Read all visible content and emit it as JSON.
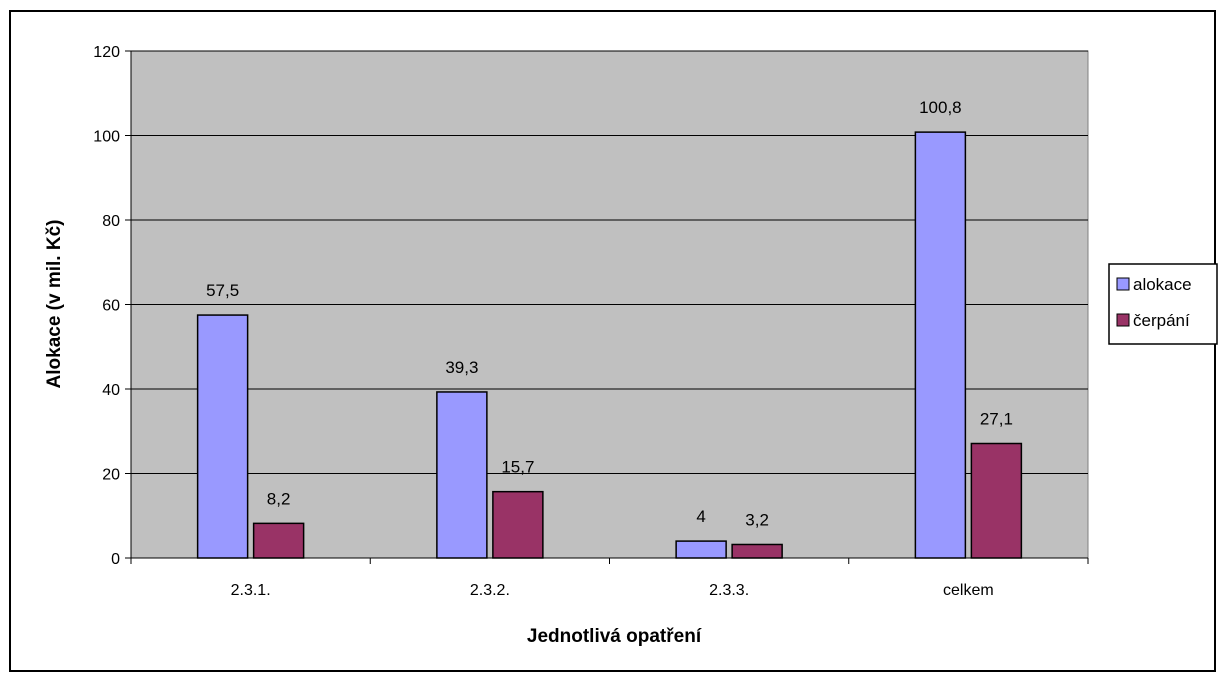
{
  "chart_data": {
    "type": "bar",
    "categories": [
      "2.3.1.",
      "2.3.2.",
      "2.3.3.",
      "celkem"
    ],
    "series": [
      {
        "name": "alokace",
        "values": [
          57.5,
          39.3,
          4,
          100.8
        ],
        "labels": [
          "57,5",
          "39,3",
          "4",
          "100,8"
        ],
        "color": "#9999FF"
      },
      {
        "name": "čerpání",
        "values": [
          8.2,
          15.7,
          3.2,
          27.1
        ],
        "labels": [
          "8,2",
          "15,7",
          "3,2",
          "27,1"
        ],
        "color": "#993366"
      }
    ],
    "xlabel": "Jednotlivá opatření",
    "ylabel": "Alokace (v mil. Kč)",
    "ylim": [
      0,
      120
    ],
    "yticks": [
      "0",
      "20",
      "40",
      "60",
      "80",
      "100",
      "120"
    ],
    "grid": true,
    "plot_background": "#C0C0C0",
    "legend_position": "right"
  }
}
